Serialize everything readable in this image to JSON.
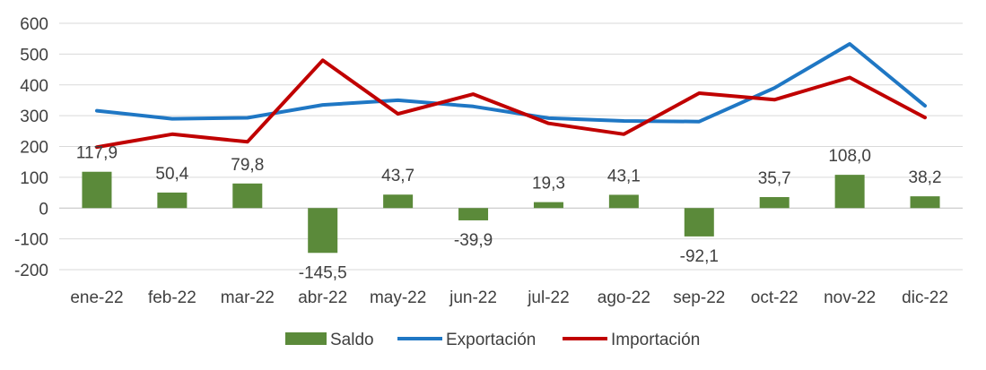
{
  "chart_data": {
    "type": "bar",
    "title": "",
    "xlabel": "",
    "ylabel": "",
    "ylim": [
      -200,
      600
    ],
    "yticks": [
      600,
      500,
      400,
      300,
      200,
      100,
      0,
      -100,
      -200
    ],
    "grid": true,
    "legend_position": "bottom",
    "categories": [
      "ene-22",
      "feb-22",
      "mar-22",
      "abr-22",
      "may-22",
      "jun-22",
      "jul-22",
      "ago-22",
      "sep-22",
      "oct-22",
      "nov-22",
      "dic-22"
    ],
    "series": [
      {
        "name": "Saldo",
        "type": "bar",
        "color": "#5b8a3a",
        "values": [
          117.9,
          50.4,
          79.8,
          -145.5,
          43.7,
          -39.9,
          19.3,
          43.1,
          -92.1,
          35.7,
          108.0,
          38.2
        ],
        "labels": [
          "117,9",
          "50,4",
          "79,8",
          "-145,5",
          "43,7",
          "-39,9",
          "19,3",
          "43,1",
          "-92,1",
          "35,7",
          "108,0",
          "38,2"
        ]
      },
      {
        "name": "Exportación",
        "type": "line",
        "color": "#1f77c4",
        "values": [
          316,
          290,
          293,
          335,
          350,
          330,
          292,
          283,
          281,
          390,
          533,
          332
        ]
      },
      {
        "name": "Importación",
        "type": "line",
        "color": "#c00000",
        "values": [
          198,
          240,
          215,
          480,
          306,
          370,
          275,
          240,
          373,
          352,
          424,
          294
        ]
      }
    ]
  }
}
